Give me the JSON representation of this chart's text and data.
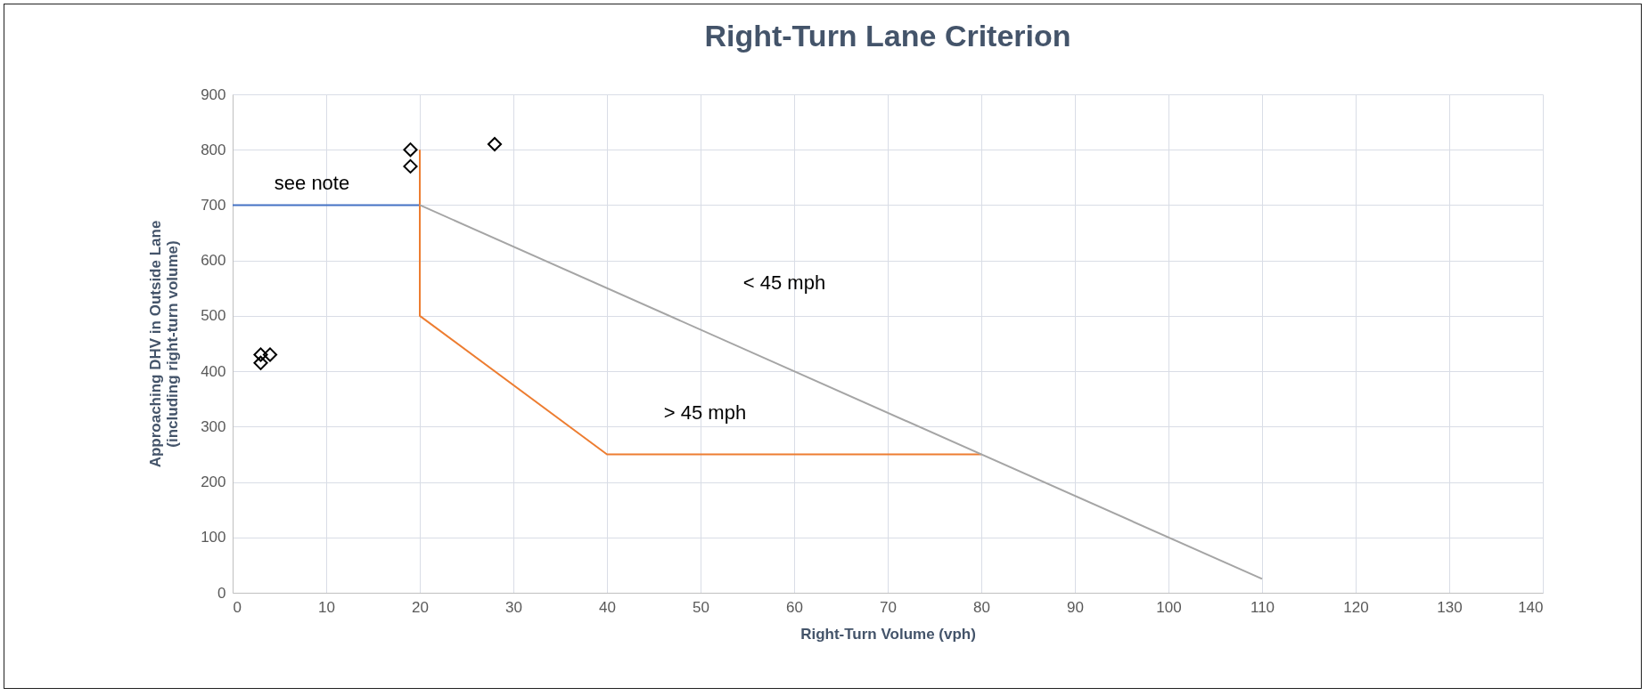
{
  "chart_data": {
    "type": "line",
    "title": "Right-Turn Lane Criterion",
    "xlabel": "Right-Turn Volume (vph)",
    "ylabel": "Approaching DHV in Outside Lane\n(including right-turn volume)",
    "xlim": [
      0,
      140
    ],
    "xticks": [
      0,
      10,
      20,
      30,
      40,
      50,
      60,
      70,
      80,
      90,
      100,
      110,
      120,
      130,
      140
    ],
    "ylim": [
      0,
      900
    ],
    "yticks": [
      0,
      100,
      200,
      300,
      400,
      500,
      600,
      700,
      800,
      900
    ],
    "grid": true,
    "series": [
      {
        "color": "#4472c4",
        "x": [
          0,
          20
        ],
        "values": [
          700,
          700
        ]
      },
      {
        "color": "#ed7d31",
        "x": [
          20,
          20,
          40,
          80
        ],
        "values": [
          800,
          500,
          250,
          250
        ]
      },
      {
        "color": "#a5a5a5",
        "x": [
          20,
          110
        ],
        "values": [
          700,
          25
        ]
      },
      {
        "type": "scatter",
        "color": "#000000",
        "marker": "diamond",
        "x": [
          3,
          3,
          4,
          19,
          19,
          28
        ],
        "values": [
          415,
          430,
          430,
          800,
          770,
          810
        ]
      }
    ],
    "annotations": [
      "see note",
      "< 45 mph",
      "> 45 mph"
    ]
  }
}
